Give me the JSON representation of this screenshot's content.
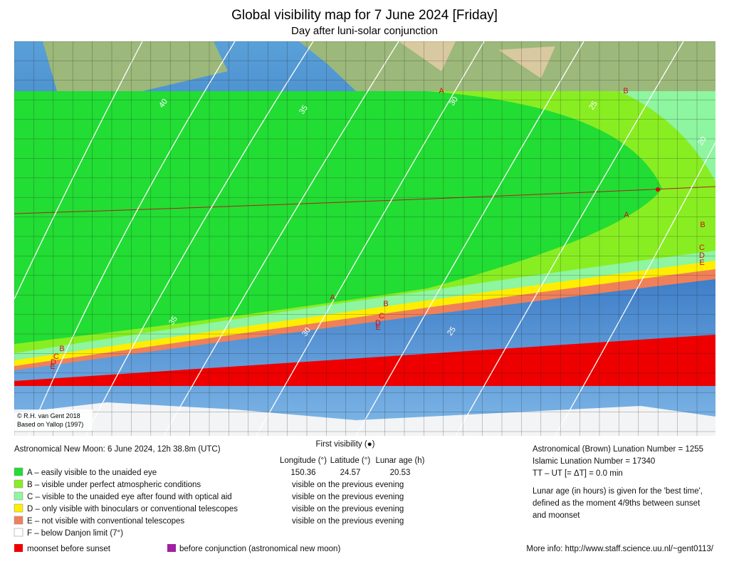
{
  "header": {
    "title": "Global visibility map for 7 June 2024 [Friday]",
    "subtitle": "Day after luni-solar conjunction"
  },
  "map": {
    "credit": [
      "© R.H. van Gent 2018",
      "Based on Yallop (1997)"
    ],
    "zone_labels": [
      "A",
      "B",
      "A",
      "B",
      "C",
      "D",
      "E",
      "A",
      "B",
      "C",
      "D",
      "E",
      "B",
      "C",
      "D",
      "E"
    ],
    "contour_labels": [
      40,
      35,
      30,
      25,
      20,
      35,
      30,
      25
    ]
  },
  "info": {
    "new_moon": "Astronomical New Moon: 6 June 2024, 12h 38.8m (UTC)",
    "first_visibility": {
      "title": "First visibility (●)",
      "headers": [
        "Longitude (°)",
        "Latitude (°)",
        "Lunar age (h)"
      ],
      "values": [
        150.36,
        24.57,
        20.53
      ]
    },
    "notes": [
      "visible on the previous evening",
      "visible on the previous evening",
      "visible on the previous evening",
      "visible on the previous evening"
    ]
  },
  "legend": {
    "items": [
      {
        "color": "#22dd33",
        "label": "A – easily visible to the unaided eye"
      },
      {
        "color": "#88ee22",
        "label": "B – visible under perfect atmospheric conditions"
      },
      {
        "color": "#8ef5a0",
        "label": "C – visible to the unaided eye after found with optical aid"
      },
      {
        "color": "#ffee00",
        "label": "D – only visible with binoculars or conventional telescopes"
      },
      {
        "color": "#f0805a",
        "label": "E – not visible with conventional telescopes"
      },
      {
        "color": "#ffffff",
        "label": "F – below Danjon limit (7°)"
      }
    ],
    "other": [
      {
        "color": "#ee0000",
        "label": "moonset before sunset"
      },
      {
        "color": "#a020a0",
        "label": "before conjunction (astronomical new moon)"
      }
    ]
  },
  "right": {
    "lines": [
      "Astronomical (Brown) Lunation Number = 1255",
      "Islamic Lunation Number = 17340",
      "TT – UT [= ΔT] = 0.0 min"
    ],
    "note": [
      "Lunar age (in hours) is given for the 'best time',",
      "defined as the moment 4/9ths between sunset",
      "and moonset"
    ],
    "more_info": "More info: http://www.staff.science.uu.nl/~gent0113/"
  }
}
